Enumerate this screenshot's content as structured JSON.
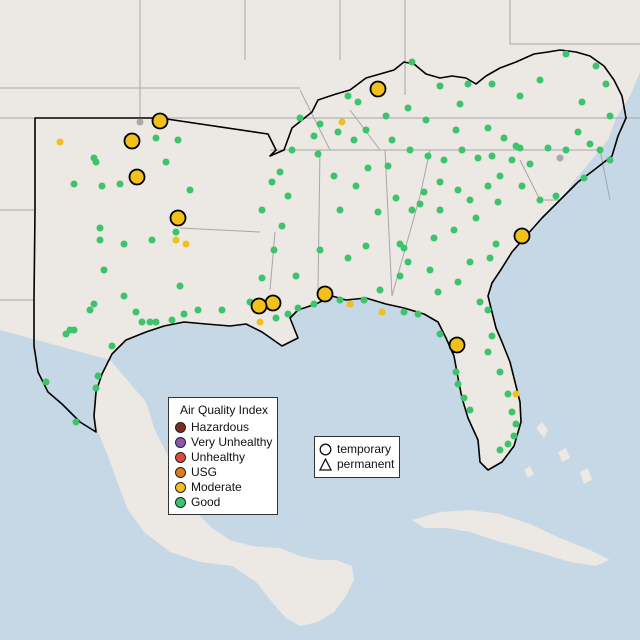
{
  "legend": {
    "title": "Air Quality Index",
    "categories": [
      {
        "label": "Hazardous",
        "color": "#7e2b25"
      },
      {
        "label": "Very Unhealthy",
        "color": "#8f54b2"
      },
      {
        "label": "Unhealthy",
        "color": "#e04a3a"
      },
      {
        "label": "USG",
        "color": "#e07b20"
      },
      {
        "label": "Moderate",
        "color": "#f2c01b"
      },
      {
        "label": "Good",
        "color": "#3cc46a"
      }
    ]
  },
  "monitor_types": {
    "temporary": {
      "label": "temporary",
      "symbol": "circle-icon"
    },
    "permanent": {
      "label": "permanent",
      "symbol": "triangle-icon"
    }
  },
  "colors": {
    "ocean": "#c6d7e6",
    "land": "#ece8e4",
    "outline": "#000000",
    "border": "#a7a7a7",
    "good": "#3cc46a",
    "moderate": "#f2c01b",
    "missing": "#a9a9a9"
  }
}
